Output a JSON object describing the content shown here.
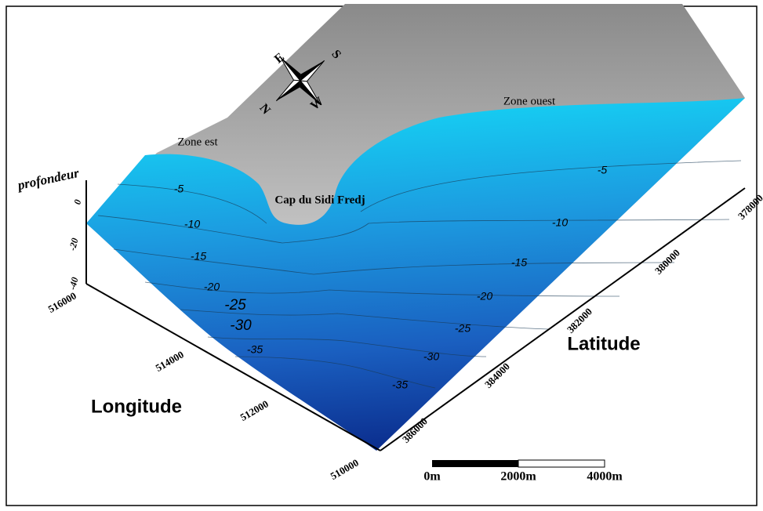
{
  "depth_axis": {
    "label": "profondeur",
    "ticks": [
      "0",
      "-20",
      "-40"
    ]
  },
  "longitude": {
    "label": "Longitude",
    "ticks": [
      "516000",
      "514000",
      "512000",
      "510000"
    ]
  },
  "latitude": {
    "label": "Latitude",
    "ticks": [
      "378000",
      "380000",
      "382000",
      "384000",
      "386000"
    ]
  },
  "places": [
    "Zone est",
    "Zone ouest",
    "Cap du Sidi Fredj"
  ],
  "contours_west": [
    "-5",
    "-10",
    "-15",
    "-20",
    "-25",
    "-30",
    "-35"
  ],
  "contours_east": [
    "-5",
    "-10",
    "-15",
    "-20",
    "-25",
    "-30",
    "-35"
  ],
  "scale_bar": [
    "0m",
    "2000m",
    "4000m"
  ],
  "compass": [
    "E",
    "S",
    "N",
    "W"
  ]
}
